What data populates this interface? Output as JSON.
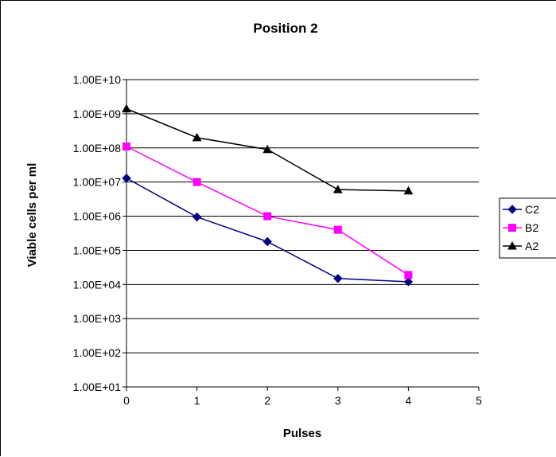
{
  "chart_data": {
    "type": "line",
    "title": "Position 2",
    "xlabel": "Pulses",
    "ylabel": "Viable cells per ml",
    "y_scale": "log",
    "xlim": [
      0,
      5
    ],
    "ylim": [
      10,
      10000000000
    ],
    "x_ticks": [
      "0",
      "1",
      "2",
      "3",
      "4",
      "5"
    ],
    "y_ticks": [
      "1.00E+01",
      "1.00E+02",
      "1.00E+03",
      "1.00E+04",
      "1.00E+05",
      "1.00E+06",
      "1.00E+07",
      "1.00E+08",
      "1.00E+09",
      "1.00E+10"
    ],
    "grid": "horizontal major gridlines",
    "legend_position": "right",
    "series": [
      {
        "name": "C2",
        "color": "#000080",
        "marker": "diamond",
        "x": [
          0,
          1,
          2,
          3,
          4
        ],
        "y": [
          13000000,
          950000,
          180000,
          15000,
          12000
        ]
      },
      {
        "name": "B2",
        "color": "#ff00ff",
        "marker": "square",
        "x": [
          0,
          1,
          2,
          3,
          4
        ],
        "y": [
          110000000,
          10000000,
          1000000,
          400000,
          19000
        ]
      },
      {
        "name": "A2",
        "color": "#000000",
        "marker": "triangle",
        "x": [
          0,
          1,
          2,
          3,
          4
        ],
        "y": [
          1400000000,
          200000000,
          90000000,
          6000000,
          5500000
        ]
      }
    ]
  }
}
